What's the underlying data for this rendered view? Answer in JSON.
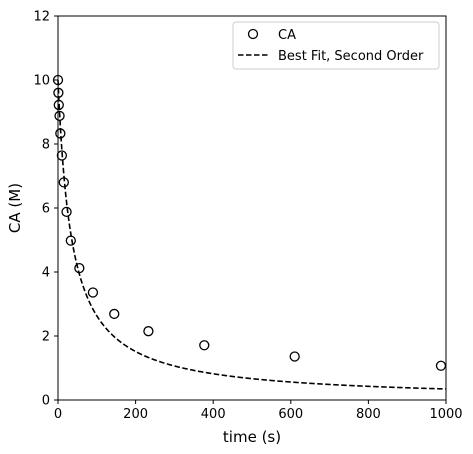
{
  "chart_data": {
    "type": "scatter",
    "xlabel": "time (s)",
    "ylabel": "CA (M)",
    "xlim": [
      0,
      1000
    ],
    "ylim": [
      0,
      12
    ],
    "xticks": [
      0,
      200,
      400,
      600,
      800,
      1000
    ],
    "yticks": [
      0,
      2,
      4,
      6,
      8,
      10,
      12
    ],
    "grid": false,
    "legend_position": "top-right",
    "series": [
      {
        "name": "CA",
        "kind": "markers",
        "marker": "open-circle",
        "color": "#000000",
        "x": [
          0,
          1,
          2,
          4,
          6,
          10,
          15,
          22,
          33,
          55,
          90,
          145,
          233,
          377,
          610,
          987
        ],
        "y": [
          10.0,
          9.6,
          9.22,
          8.88,
          8.33,
          7.64,
          6.8,
          5.88,
          4.98,
          4.12,
          3.36,
          2.69,
          2.15,
          1.71,
          1.36,
          1.07
        ]
      },
      {
        "name": "Best Fit, Second Order",
        "kind": "line",
        "line_style": "dashed",
        "color": "#000000",
        "model": "second-order",
        "CA0": 10.0,
        "k": 0.0028
      }
    ]
  }
}
